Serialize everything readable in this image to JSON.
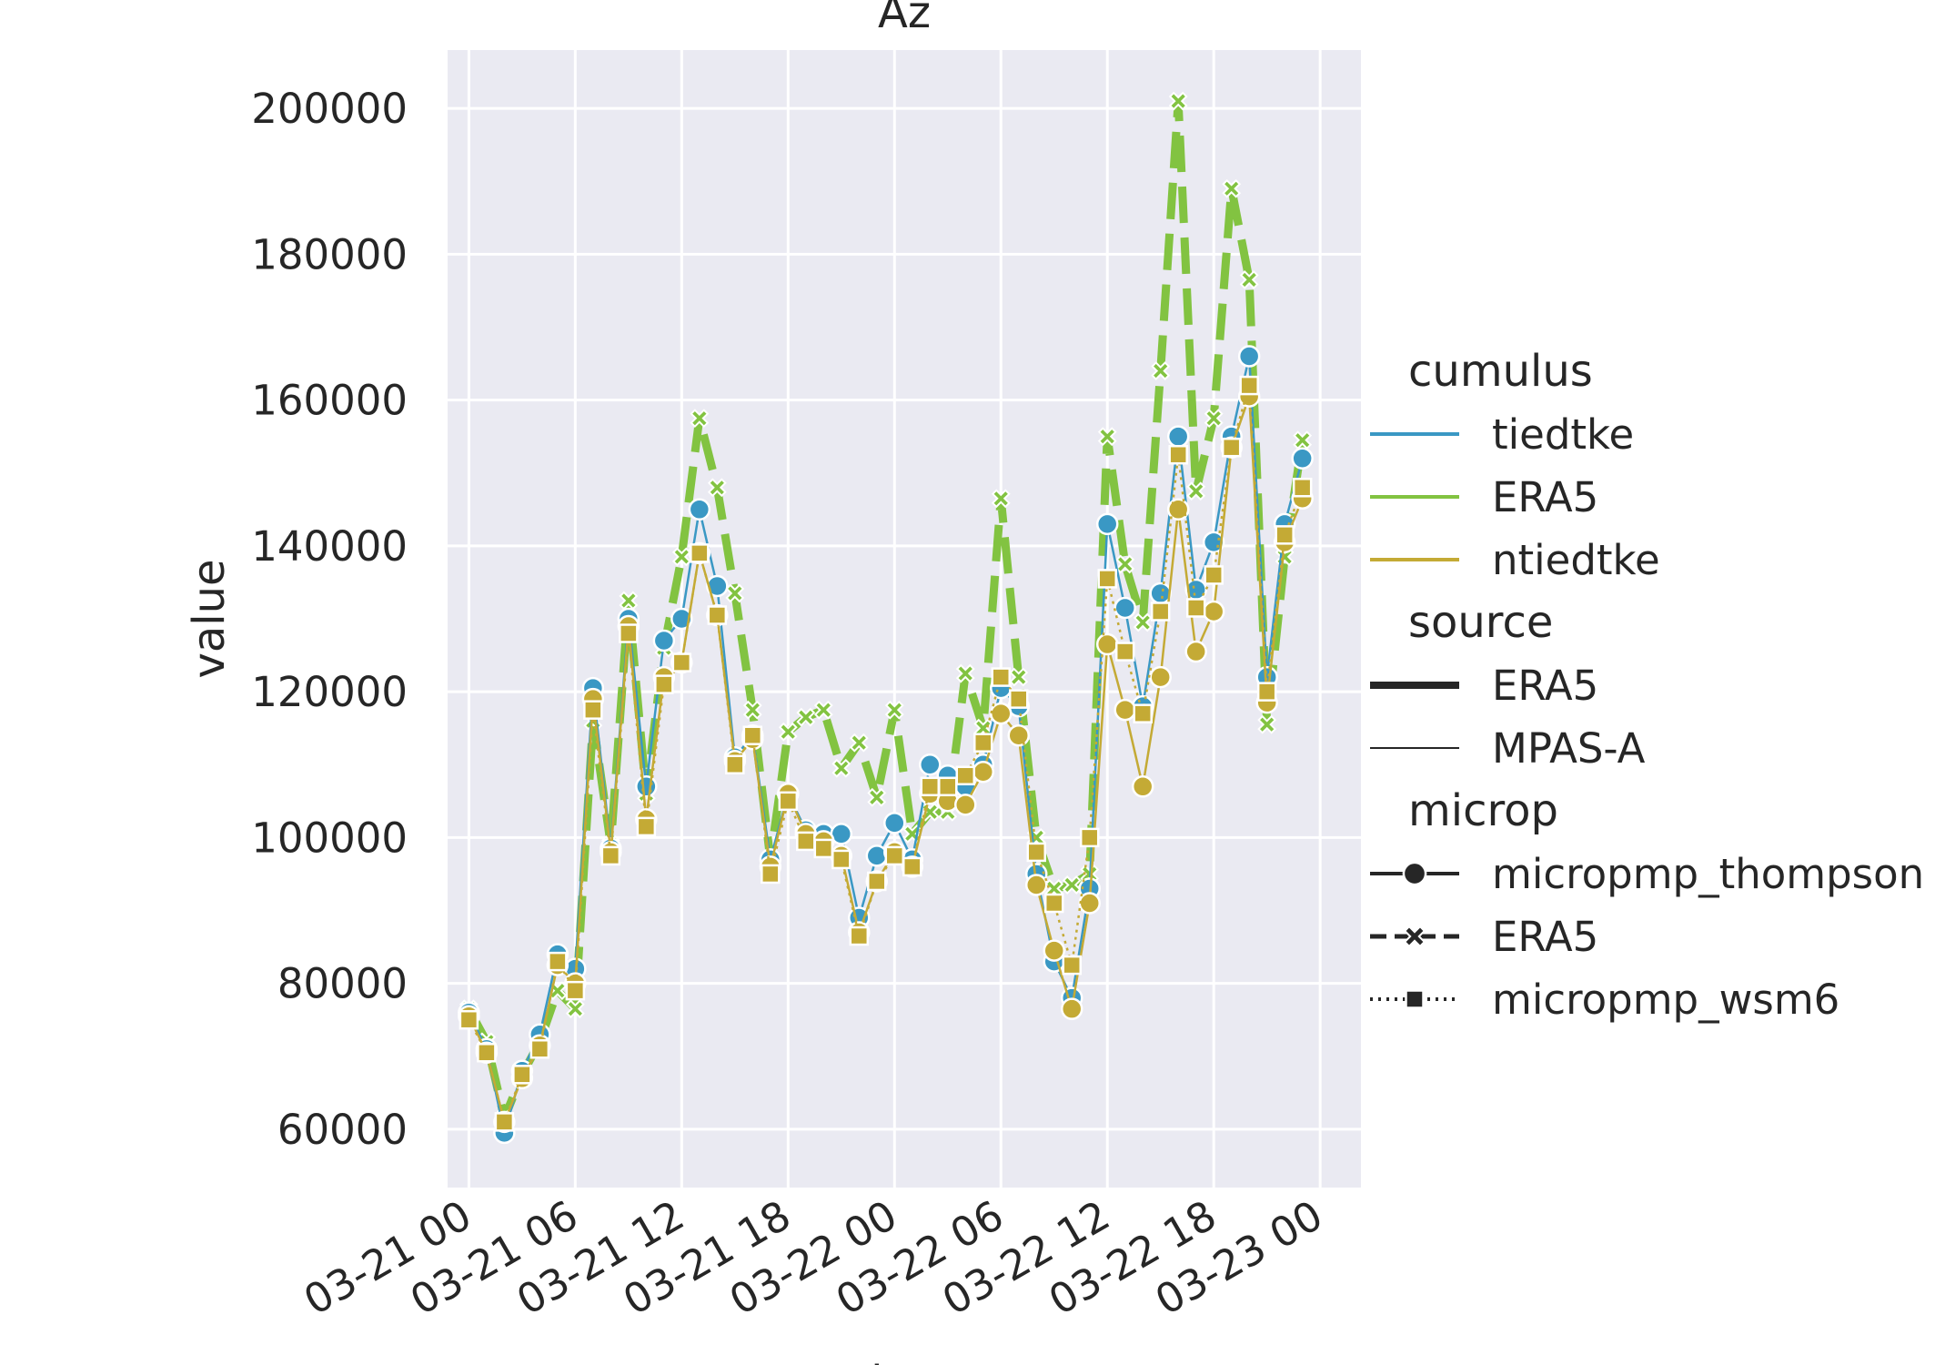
{
  "chart_data": {
    "type": "line",
    "title": "Az",
    "xlabel": "date",
    "ylabel": "value",
    "x_ticks": [
      "03-21 00",
      "03-21 06",
      "03-21 12",
      "03-21 18",
      "03-22 00",
      "03-22 06",
      "03-22 12",
      "03-22 18",
      "03-23 00"
    ],
    "y_ticks": [
      "60000",
      "80000",
      "100000",
      "120000",
      "140000",
      "160000",
      "180000",
      "200000"
    ],
    "xlim": [
      "03-20 22:48",
      "03-23 02:18"
    ],
    "ylim": [
      52000,
      208000
    ],
    "grid": true,
    "background": "#eaeaf2",
    "legend": {
      "placement": "right",
      "groups": [
        {
          "title": "cumulus",
          "entries": [
            {
              "label": "tiedtke",
              "color": "#3a98c4",
              "kind": "color"
            },
            {
              "label": "ERA5",
              "color": "#82c341",
              "kind": "color"
            },
            {
              "label": "ntiedtke",
              "color": "#c4aa35",
              "kind": "color"
            }
          ]
        },
        {
          "title": "source",
          "entries": [
            {
              "label": "ERA5",
              "kind": "width-thick"
            },
            {
              "label": "MPAS-A",
              "kind": "width-thin"
            }
          ]
        },
        {
          "title": "microp",
          "entries": [
            {
              "label": "micropmp_thompson",
              "kind": "solid-circle"
            },
            {
              "label": "ERA5",
              "kind": "dashed-x"
            },
            {
              "label": "micropmp_wsm6",
              "kind": "dotted-square"
            }
          ]
        }
      ]
    },
    "x_times": [
      "03-21 00",
      "03-21 01",
      "03-21 02",
      "03-21 03",
      "03-21 04",
      "03-21 05",
      "03-21 06",
      "03-21 07",
      "03-21 08",
      "03-21 09",
      "03-21 10",
      "03-21 11",
      "03-21 12",
      "03-21 13",
      "03-21 14",
      "03-21 15",
      "03-21 16",
      "03-21 17",
      "03-21 18",
      "03-21 19",
      "03-21 20",
      "03-21 21",
      "03-21 22",
      "03-21 23",
      "03-22 00",
      "03-22 01",
      "03-22 02",
      "03-22 03",
      "03-22 04",
      "03-22 05",
      "03-22 06",
      "03-22 07",
      "03-22 08",
      "03-22 09",
      "03-22 10",
      "03-22 11",
      "03-22 12",
      "03-22 13",
      "03-22 14",
      "03-22 15",
      "03-22 16",
      "03-22 17",
      "03-22 18",
      "03-22 19",
      "03-22 20",
      "03-22 21",
      "03-22 22",
      "03-22 23",
      "03-23 00"
    ],
    "series": [
      {
        "name": "ERA5 / ERA5 / ERA5",
        "color": "#82c341",
        "width": "thick",
        "dash": "dashed",
        "marker": "x",
        "values": [
          76500,
          72000,
          61500,
          67500,
          72000,
          79000,
          76500,
          116000,
          99000,
          132500,
          106000,
          126000,
          138500,
          157500,
          148000,
          133500,
          117500,
          97000,
          114500,
          116500,
          117500,
          109500,
          113000,
          105500,
          117500,
          100500,
          103500,
          103500,
          122500,
          115000,
          146500,
          122000,
          100000,
          93000,
          93500,
          95000,
          155000,
          137500,
          129500,
          164000,
          201000,
          147500,
          157500,
          189000,
          176500,
          115500,
          138500,
          154500,
          null
        ]
      },
      {
        "name": "tiedtke / MPAS-A / micropmp_thompson",
        "color": "#3a98c4",
        "width": "thin",
        "dash": "solid",
        "marker": "circle",
        "values": [
          76000,
          71000,
          59500,
          68000,
          73000,
          84000,
          82000,
          120500,
          98500,
          130000,
          107000,
          127000,
          130000,
          145000,
          134500,
          111000,
          114000,
          97000,
          106000,
          101000,
          100500,
          100500,
          89000,
          97500,
          102000,
          97000,
          110000,
          108500,
          107000,
          110000,
          120500,
          118000,
          95000,
          83000,
          78000,
          93000,
          143000,
          131500,
          118000,
          133500,
          155000,
          134000,
          140500,
          155000,
          166000,
          122000,
          143000,
          152000,
          null
        ]
      },
      {
        "name": "ntiedtke / MPAS-A / micropmp_thompson",
        "color": "#c4aa35",
        "width": "thin",
        "dash": "solid",
        "marker": "circle",
        "values": [
          75500,
          70500,
          61000,
          67000,
          71500,
          82500,
          80000,
          119000,
          98000,
          129000,
          102500,
          122000,
          124000,
          139000,
          130500,
          110500,
          113500,
          96000,
          106000,
          100500,
          99500,
          97500,
          87000,
          94000,
          98000,
          96000,
          106000,
          105000,
          104500,
          109000,
          117000,
          114000,
          93500,
          84500,
          76500,
          91000,
          126500,
          117500,
          107000,
          122000,
          145000,
          125500,
          131000,
          153500,
          160500,
          118500,
          140500,
          146500,
          null
        ]
      },
      {
        "name": "ntiedtke / MPAS-A / micropmp_wsm6",
        "color": "#c4aa35",
        "width": "thin",
        "dash": "dotted",
        "marker": "square",
        "values": [
          75000,
          70500,
          61000,
          67500,
          71000,
          83000,
          79000,
          117500,
          97500,
          128000,
          101500,
          121000,
          124000,
          139000,
          130500,
          110000,
          114000,
          95000,
          105000,
          99500,
          98500,
          97000,
          86500,
          94000,
          97500,
          96000,
          107000,
          107000,
          108500,
          113000,
          122000,
          119000,
          98000,
          91000,
          82500,
          100000,
          135500,
          125500,
          117000,
          131000,
          152500,
          131500,
          136000,
          153500,
          162000,
          120000,
          141500,
          148000,
          null
        ]
      }
    ]
  }
}
